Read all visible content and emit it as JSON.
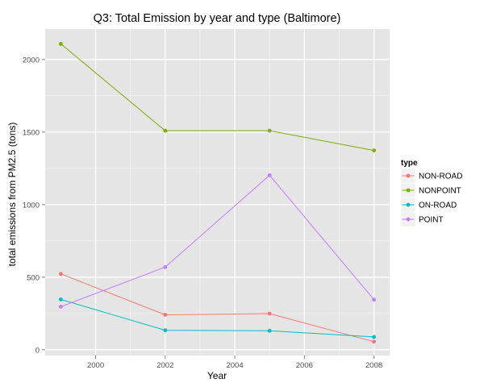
{
  "chart_data": {
    "type": "line",
    "title": "Q3: Total Emission by year and type (Baltimore)",
    "xlabel": "Year",
    "ylabel": "total emissions from PM2.5 (tons)",
    "x": [
      1999,
      2002,
      2005,
      2008
    ],
    "xlim": [
      1998.55,
      2008.45
    ],
    "ylim": [
      -40,
      2210
    ],
    "xticks": [
      2000,
      2002,
      2004,
      2006,
      2008
    ],
    "yticks": [
      0,
      500,
      1000,
      1500,
      2000
    ],
    "grid": true,
    "legend_title": "type",
    "legend_position": "right",
    "series": [
      {
        "name": "NON-ROAD",
        "color": "#f8766d",
        "values": [
          522.9,
          240.8,
          248.9,
          55.8
        ]
      },
      {
        "name": "NONPOINT",
        "color": "#7cae00",
        "values": [
          2107.6,
          1509.5,
          1509.5,
          1373.2
        ]
      },
      {
        "name": "ON-ROAD",
        "color": "#00bfc4",
        "values": [
          346.8,
          134.3,
          130.4,
          88.3
        ]
      },
      {
        "name": "POINT",
        "color": "#c77cff",
        "values": [
          296.8,
          569.3,
          1202.5,
          344.98
        ]
      }
    ]
  }
}
